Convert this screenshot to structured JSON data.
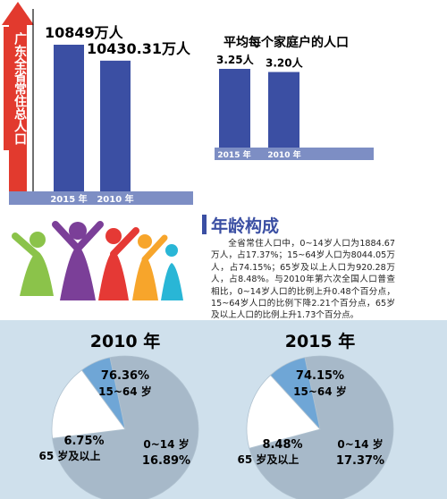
{
  "chart_data": [
    {
      "type": "bar",
      "ylabel": "广东全省常住总人口",
      "categories": [
        "2015 年",
        "2010 年"
      ],
      "values": [
        10849,
        10430.31
      ],
      "value_labels": [
        "10849万人",
        "10430.31万人"
      ],
      "bar_color": "#3b4fa3",
      "axis_color": "#7d8ec4"
    },
    {
      "type": "bar",
      "title": "平均每个家庭户的人口",
      "categories": [
        "2015 年",
        "2010 年"
      ],
      "values": [
        3.25,
        3.2
      ],
      "value_labels": [
        "3.25人",
        "3.20人"
      ],
      "bar_color": "#3b4fa3"
    },
    {
      "type": "pie",
      "title": "2010 年",
      "slices": [
        {
          "pct": 76.36,
          "value_label": "76.36%",
          "range_label": "15~64 岁",
          "color": "#a7b9c9"
        },
        {
          "pct": 16.89,
          "value_label": "16.89%",
          "range_label": "0~14 岁",
          "color": "#ffffff"
        },
        {
          "pct": 6.75,
          "value_label": "6.75%",
          "range_label": "65 岁及以上",
          "color": "#6fa6d6"
        }
      ]
    },
    {
      "type": "pie",
      "title": "2015 年",
      "slices": [
        {
          "pct": 74.15,
          "value_label": "74.15%",
          "range_label": "15~64 岁",
          "color": "#a7b9c9"
        },
        {
          "pct": 17.37,
          "value_label": "17.37%",
          "range_label": "0~14 岁",
          "color": "#ffffff"
        },
        {
          "pct": 8.48,
          "value_label": "8.48%",
          "range_label": "65 岁及以上",
          "color": "#6fa6d6"
        }
      ]
    }
  ],
  "section": {
    "title": "年龄构成",
    "text": "全省常住人口中，0~14岁人口为1884.67万人，占17.37%；15~64岁人口为8044.05万人，占74.15%；65岁及以上人口为920.28万人，占8.48%。与2010年第六次全国人口普查相比，0~14岁人口的比例上升0.48个百分点，15~64岁人口的比例下降2.21个百分点，65岁及以上人口的比例上升1.73个百分点。"
  },
  "colors": {
    "accent_red": "#e23a2e",
    "pie_bg": "#cfe0ec",
    "title_blue": "#3b4fa3"
  }
}
